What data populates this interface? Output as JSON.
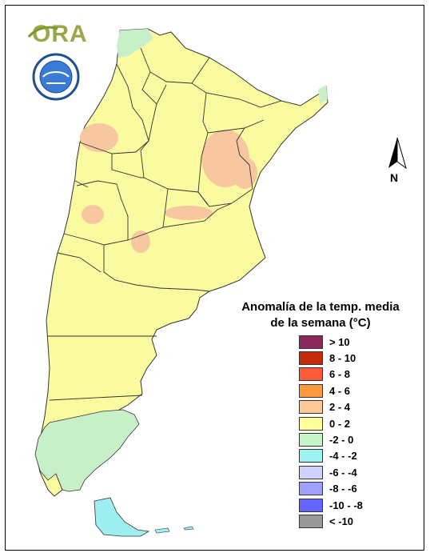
{
  "logo": {
    "text": "ORA"
  },
  "legend": {
    "title_line1": "Anomalía de la temp. media",
    "title_line2": "de la semana (°C)",
    "items": [
      {
        "label": "> 10",
        "color": "#8b2a5a"
      },
      {
        "label": "8 - 10",
        "color": "#c42a0c"
      },
      {
        "label": "6 - 8",
        "color": "#ff5a3a"
      },
      {
        "label": "4 - 6",
        "color": "#ff9a3c"
      },
      {
        "label": "2 - 4",
        "color": "#ffc896"
      },
      {
        "label": "0 - 2",
        "color": "#ffff9b"
      },
      {
        "label": "-2 - 0",
        "color": "#c8f5c8"
      },
      {
        "label": "-4 - -2",
        "color": "#9ef2f2"
      },
      {
        "label": "-6 - -4",
        "color": "#d2d2ff"
      },
      {
        "label": "-8 - -6",
        "color": "#a0a0ff"
      },
      {
        "label": "-10 - -8",
        "color": "#6464ff"
      },
      {
        "label": "< -10",
        "color": "#999999"
      }
    ]
  },
  "north_arrow": {
    "label": "N",
    "icon": "north-arrow-icon"
  },
  "map_colors": {
    "base": "#fafaa0",
    "warm": "#f7c8a0",
    "cool": "#c8f0c8",
    "cyan": "#9ef0f0",
    "border": "#333333"
  }
}
